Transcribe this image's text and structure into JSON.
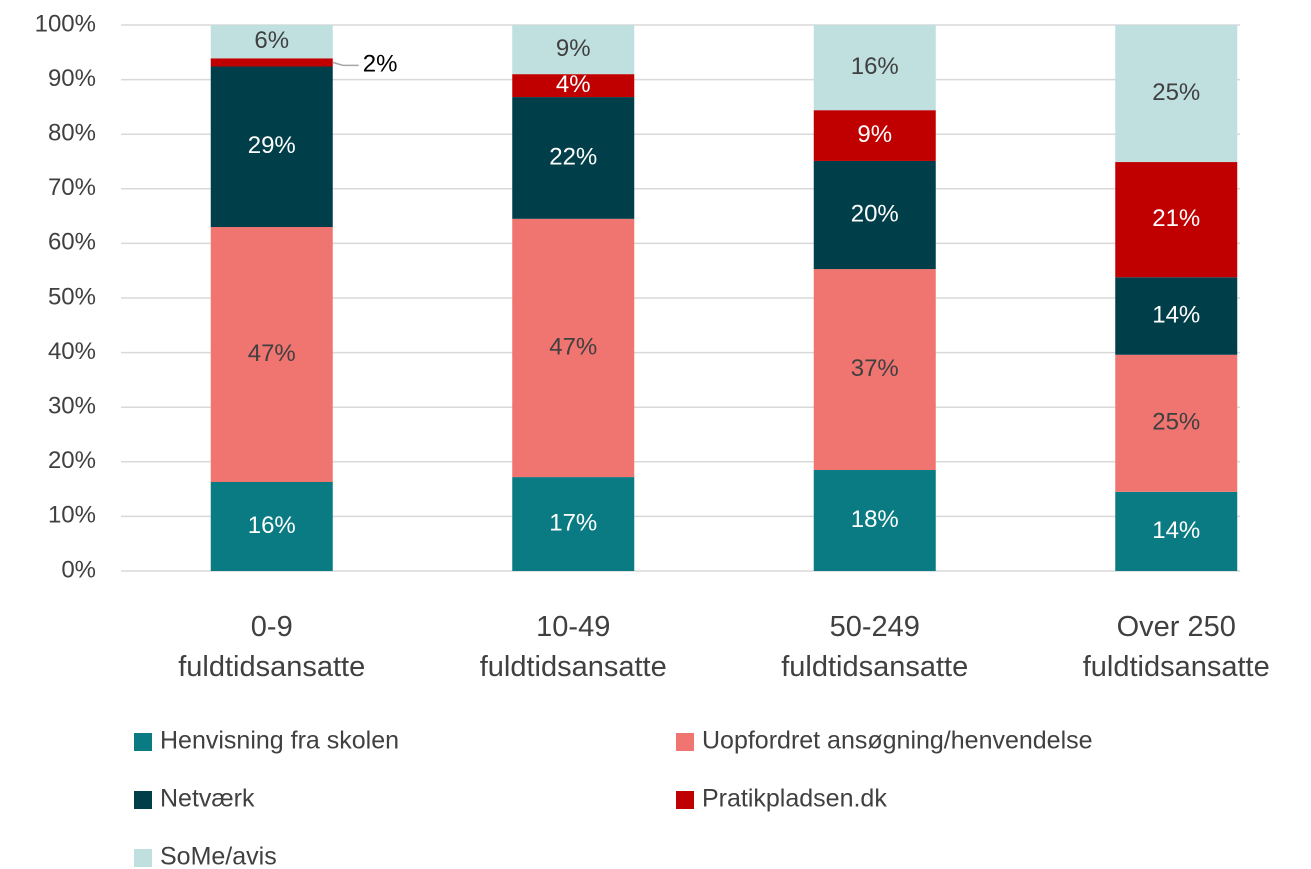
{
  "chart_data": {
    "type": "stacked_bar",
    "categories": [
      "0-9\nfuldtidsansatte",
      "10-49\nfuldtidsansatte",
      "50-249\nfuldtidsansatte",
      "Over 250\nfuldtidsansatte"
    ],
    "series": [
      {
        "name": "Henvisning fra skolen",
        "color": "#0a7b83",
        "values": [
          16.3,
          17.2,
          18.5,
          14.5
        ],
        "value_labels": [
          "16%",
          "17%",
          "18%",
          "14%"
        ]
      },
      {
        "name": "Uopfordret ansøgning/henvendelse",
        "color": "#f07470",
        "values": [
          46.7,
          47.3,
          36.8,
          25.1
        ],
        "value_labels": [
          "47%",
          "47%",
          "37%",
          "25%"
        ]
      },
      {
        "name": "Netværk",
        "color": "#003f4a",
        "values": [
          29.4,
          22.3,
          19.8,
          14.2
        ],
        "value_labels": [
          "29%",
          "22%",
          "20%",
          "14%"
        ]
      },
      {
        "name": "Pratikpladsen.dk",
        "color": "#c00000",
        "values": [
          1.5,
          4.2,
          9.3,
          21.1
        ],
        "value_labels": [
          "2%",
          "4%",
          "9%",
          "21%"
        ]
      },
      {
        "name": "SoMe/avis",
        "color": "#bfe0df",
        "values": [
          6.1,
          9.0,
          15.6,
          25.1
        ],
        "value_labels": [
          "6%",
          "9%",
          "16%",
          "25%"
        ]
      }
    ],
    "ylim": [
      0,
      100
    ],
    "yticks": [
      {
        "value": 0,
        "label": "0%"
      },
      {
        "value": 10,
        "label": "10%"
      },
      {
        "value": 20,
        "label": "20%"
      },
      {
        "value": 30,
        "label": "30%"
      },
      {
        "value": 40,
        "label": "40%"
      },
      {
        "value": 50,
        "label": "50%"
      },
      {
        "value": 60,
        "label": "60%"
      },
      {
        "value": 70,
        "label": "70%"
      },
      {
        "value": 80,
        "label": "80%"
      },
      {
        "value": 90,
        "label": "90%"
      },
      {
        "value": 100,
        "label": "100%"
      }
    ],
    "grid": true,
    "legend": "bottom"
  }
}
